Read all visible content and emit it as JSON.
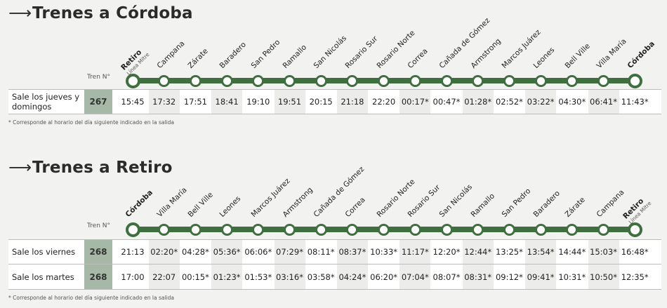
{
  "cordoba": {
    "title": "Trenes a Córdoba",
    "tren_label": "Tren N°",
    "sub_label": "Línea Mitre",
    "stations": [
      "Retiro",
      "Campana",
      "Zárate",
      "Baradero",
      "San Pedro",
      "Ramallo",
      "San Nicolás",
      "Rosario Sur",
      "Rosario Norte",
      "Correa",
      "Cañada de Gómez",
      "Armstrong",
      "Marcos Juárez",
      "Leones",
      "Bell Ville",
      "Villa María",
      "Córdoba"
    ],
    "rows": [
      {
        "label": "Sale los jueves y domingos",
        "tren": "267",
        "times": [
          "15:45",
          "17:32",
          "17:51",
          "18:41",
          "19:10",
          "19:51",
          "20:15",
          "21:18",
          "22:20",
          "00:17*",
          "00:47*",
          "01:28*",
          "02:52*",
          "03:22*",
          "04:30*",
          "06:41*",
          "11:43*"
        ]
      }
    ],
    "footnote": "* Corresponde al horario del día siguiente indicado en la salida"
  },
  "retiro": {
    "title": "Trenes a Retiro",
    "tren_label": "Tren N°",
    "sub_label": "Línea Mitre",
    "stations": [
      "Córdoba",
      "Villa María",
      "Bell Ville",
      "Leones",
      "Marcos Juárez",
      "Armstrong",
      "Cañada de Gómez",
      "Correa",
      "Rosario Norte",
      "Rosario Sur",
      "San Nicolás",
      "Ramallo",
      "San Pedro",
      "Baradero",
      "Zárate",
      "Campana",
      "Retiro"
    ],
    "rows": [
      {
        "label": "Sale los viernes",
        "tren": "268",
        "times": [
          "21:13",
          "02:20*",
          "04:28*",
          "05:36*",
          "06:06*",
          "07:29*",
          "08:11*",
          "08:37*",
          "10:33*",
          "11:17*",
          "12:20*",
          "12:44*",
          "13:25*",
          "13:54*",
          "14:44*",
          "15:03*",
          "16:48*"
        ]
      },
      {
        "label": "Sale los martes",
        "tren": "268",
        "times": [
          "17:00",
          "22:07",
          "00:15*",
          "01:23*",
          "01:53*",
          "03:16*",
          "03:58*",
          "04:24*",
          "06:20*",
          "07:04*",
          "08:07*",
          "08:31*",
          "09:12*",
          "09:41*",
          "10:31*",
          "10:50*",
          "12:35*"
        ]
      }
    ],
    "footnote": "* Corresponde al horario del día siguiente indicado en la salida"
  }
}
